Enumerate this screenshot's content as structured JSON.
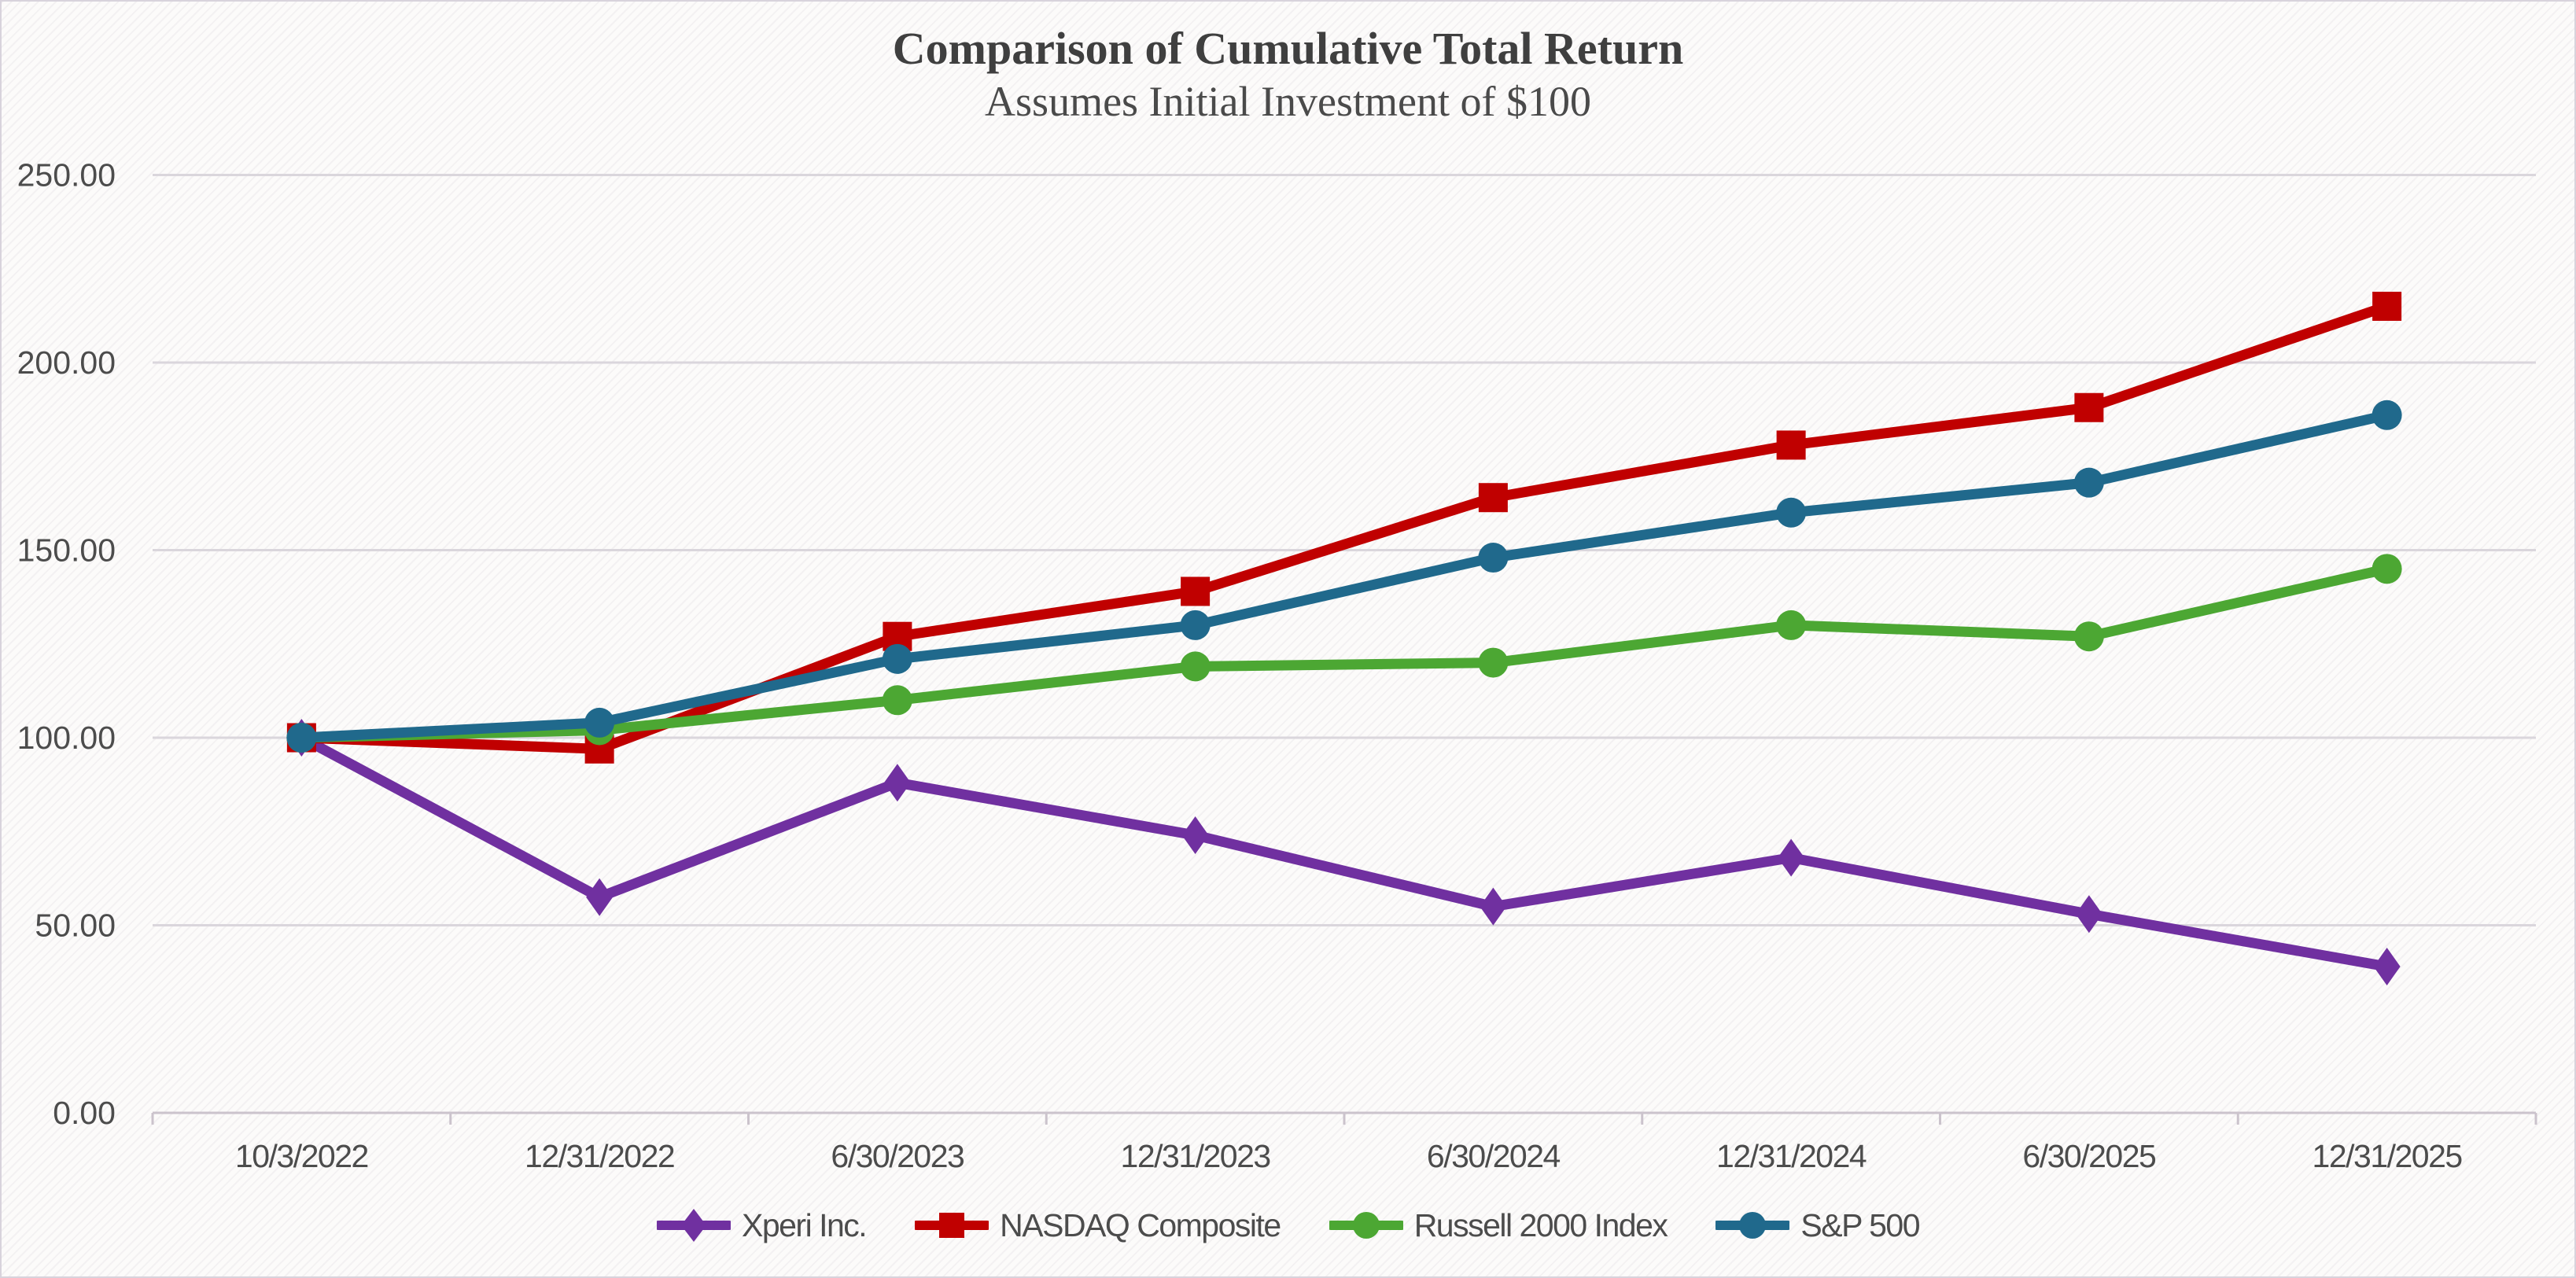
{
  "header": {
    "title": "Comparison of Cumulative Total Return",
    "subtitle": "Assumes Initial Investment of $100"
  },
  "chart_data": {
    "type": "line",
    "title": "Comparison of Cumulative Total Return",
    "subtitle": "Assumes Initial Investment of $100",
    "categories": [
      "10/3/2022",
      "12/31/2022",
      "6/30/2023",
      "12/31/2023",
      "6/30/2024",
      "12/31/2024",
      "6/30/2025",
      "12/31/2025"
    ],
    "series": [
      {
        "name": "Xperi Inc.",
        "color": "#7030A0",
        "marker": "diamond",
        "values": [
          100.0,
          57.5,
          88.0,
          74.0,
          55.0,
          68.0,
          53.0,
          39.0
        ]
      },
      {
        "name": "NASDAQ Composite",
        "color": "#C00000",
        "marker": "square",
        "values": [
          100.0,
          97.0,
          127.0,
          139.0,
          164.0,
          178.0,
          188.0,
          215.0
        ]
      },
      {
        "name": "Russell 2000 Index",
        "color": "#4CA733",
        "marker": "circle",
        "values": [
          100.0,
          102.0,
          110.0,
          119.0,
          120.0,
          130.0,
          127.0,
          145.0
        ]
      },
      {
        "name": "S&P 500",
        "color": "#20698C",
        "marker": "circle",
        "values": [
          100.0,
          104.0,
          121.0,
          130.0,
          148.0,
          160.0,
          168.0,
          186.0
        ]
      }
    ],
    "y_axis": {
      "min": 0,
      "max": 250,
      "step": 50,
      "tick_labels": [
        "0.00",
        "50.00",
        "100.00",
        "150.00",
        "200.00",
        "250.00"
      ]
    },
    "grid": true,
    "legend_position": "bottom",
    "colors": {
      "gridline": "#DAD6DC",
      "axis_line": "#CBC3CC",
      "tick": "#CBC3CC",
      "label": "#4C4C4C",
      "title": "#3F3F3F"
    }
  }
}
